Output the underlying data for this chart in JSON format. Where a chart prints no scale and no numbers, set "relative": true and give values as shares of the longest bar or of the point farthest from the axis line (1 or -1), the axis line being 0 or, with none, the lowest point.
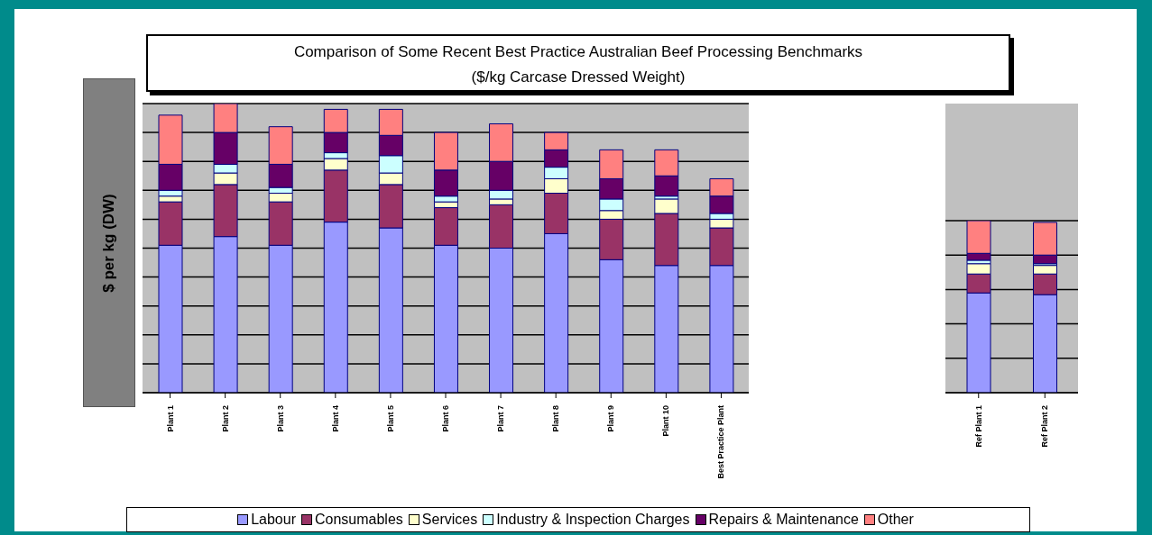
{
  "chart_data": [
    {
      "type": "bar",
      "title": "Comparison of Some Recent Best Practice Australian Beef Processing Benchmarks",
      "subtitle": "($/kg Carcase Dressed Weight)",
      "ylabel": "$ per kg (DW)",
      "relative": true,
      "stacked": true,
      "grid": "y",
      "legend": "bottom",
      "categories": [
        "Plant 1",
        "Plant 2",
        "Plant 3",
        "Plant 4",
        "Plant 5",
        "Plant 6",
        "Plant 7",
        "Plant 8",
        "Plant 9",
        "Plant 10",
        "Best Practice Plant"
      ],
      "series": [
        {
          "name": "Labour",
          "color": "#9999ff",
          "values": [
            0.51,
            0.54,
            0.51,
            0.59,
            0.57,
            0.51,
            0.5,
            0.55,
            0.46,
            0.44,
            0.44
          ]
        },
        {
          "name": "Consumables",
          "color": "#993366",
          "values": [
            0.15,
            0.18,
            0.15,
            0.18,
            0.15,
            0.13,
            0.15,
            0.14,
            0.14,
            0.18,
            0.13
          ]
        },
        {
          "name": "Services",
          "color": "#ffffcc",
          "values": [
            0.02,
            0.04,
            0.03,
            0.04,
            0.04,
            0.02,
            0.02,
            0.05,
            0.03,
            0.05,
            0.03
          ]
        },
        {
          "name": "Industry & Inspection Charges",
          "color": "#ccffff",
          "values": [
            0.02,
            0.03,
            0.02,
            0.02,
            0.06,
            0.02,
            0.03,
            0.04,
            0.04,
            0.01,
            0.02
          ]
        },
        {
          "name": "Repairs & Maintenance",
          "color": "#660066",
          "values": [
            0.09,
            0.11,
            0.08,
            0.07,
            0.07,
            0.09,
            0.1,
            0.06,
            0.07,
            0.07,
            0.06
          ]
        },
        {
          "name": "Other",
          "color": "#ff8080",
          "values": [
            0.17,
            0.1,
            0.13,
            0.08,
            0.09,
            0.13,
            0.13,
            0.06,
            0.1,
            0.09,
            0.06
          ]
        }
      ]
    },
    {
      "type": "bar",
      "relative": true,
      "stacked": true,
      "grid": "y",
      "categories": [
        "Ref Plant 1",
        "Ref Plant 2"
      ],
      "series": [
        {
          "color": "#9999ff",
          "values": [
            0.58,
            0.57
          ]
        },
        {
          "color": "#993366",
          "values": [
            0.11,
            0.12
          ]
        },
        {
          "color": "#ffffcc",
          "values": [
            0.06,
            0.05
          ]
        },
        {
          "color": "#ccffff",
          "values": [
            0.02,
            0.01
          ]
        },
        {
          "color": "#660066",
          "values": [
            0.04,
            0.05
          ]
        },
        {
          "color": "#ff8080",
          "values": [
            0.19,
            0.19
          ]
        }
      ]
    }
  ]
}
